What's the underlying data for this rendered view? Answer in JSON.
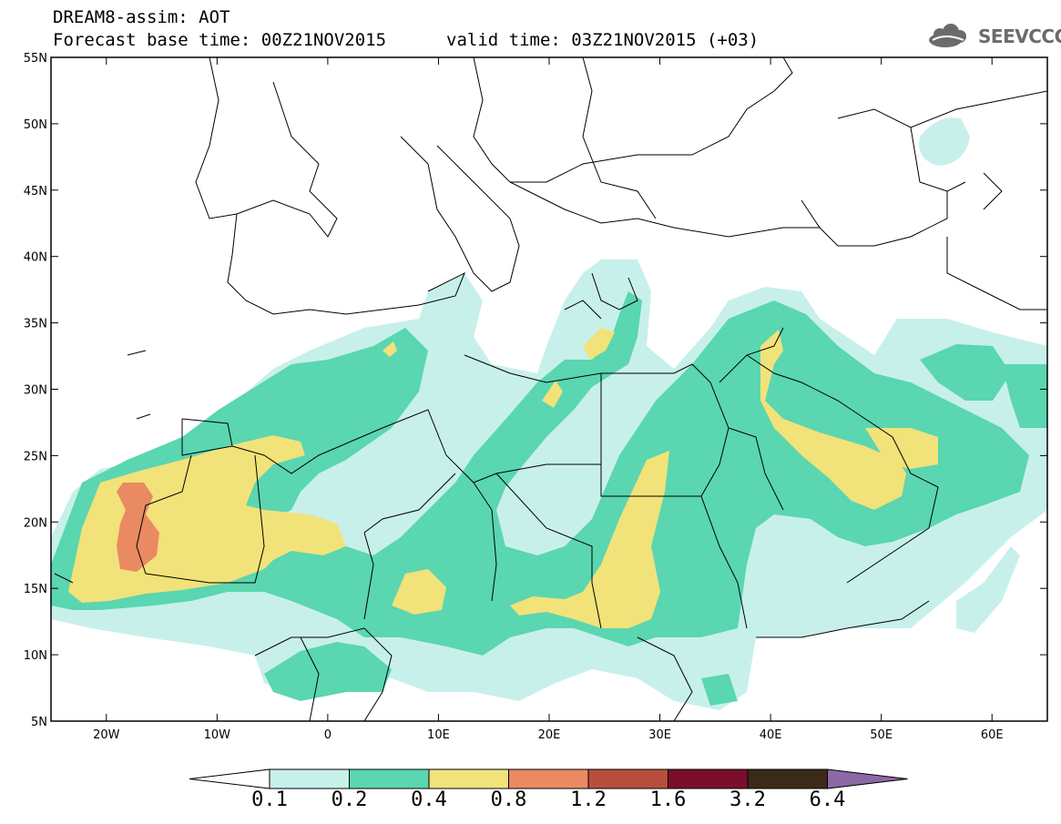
{
  "header": {
    "line1": "DREAM8-assim: AOT",
    "line2": "Forecast base time: 00Z21NOV2015",
    "line3": "valid time: 03Z21NOV2015 (+03)"
  },
  "logo": {
    "text": "SEEVCCC",
    "icon": "cloud-icon"
  },
  "map": {
    "lon_range": [
      -25,
      65
    ],
    "lat_range": [
      5,
      55
    ],
    "lat_ticks": [
      {
        "value": 55,
        "label": "55N"
      },
      {
        "value": 50,
        "label": "50N"
      },
      {
        "value": 45,
        "label": "45N"
      },
      {
        "value": 40,
        "label": "40N"
      },
      {
        "value": 35,
        "label": "35N"
      },
      {
        "value": 30,
        "label": "30N"
      },
      {
        "value": 25,
        "label": "25N"
      },
      {
        "value": 20,
        "label": "20N"
      },
      {
        "value": 15,
        "label": "15N"
      },
      {
        "value": 10,
        "label": "10N"
      },
      {
        "value": 5,
        "label": "5N"
      }
    ],
    "lon_ticks": [
      {
        "value": -20,
        "label": "20W"
      },
      {
        "value": -10,
        "label": "10W"
      },
      {
        "value": 0,
        "label": "0"
      },
      {
        "value": 10,
        "label": "10E"
      },
      {
        "value": 20,
        "label": "20E"
      },
      {
        "value": 30,
        "label": "30E"
      },
      {
        "value": 40,
        "label": "40E"
      },
      {
        "value": 50,
        "label": "50E"
      },
      {
        "value": 60,
        "label": "60E"
      }
    ],
    "colors": {
      "c01": "#c8f0ea",
      "c02": "#5ad6b0",
      "c04": "#f2e27a",
      "c08": "#e98a62",
      "c12": "#b84f3c",
      "c16": "#7a0f2c",
      "c32": "#3c2a18",
      "c64": "#8c68a6",
      "border": "#000000",
      "background": "#ffffff"
    }
  },
  "legend": {
    "bounds": [
      "0.1",
      "0.2",
      "0.4",
      "0.8",
      "1.2",
      "1.6",
      "3.2",
      "6.4"
    ],
    "colors": [
      "#ffffff",
      "#c8f0ea",
      "#5ad6b0",
      "#f2e27a",
      "#e98a62",
      "#b84f3c",
      "#7a0f2c",
      "#3c2a18",
      "#8c68a6"
    ]
  }
}
